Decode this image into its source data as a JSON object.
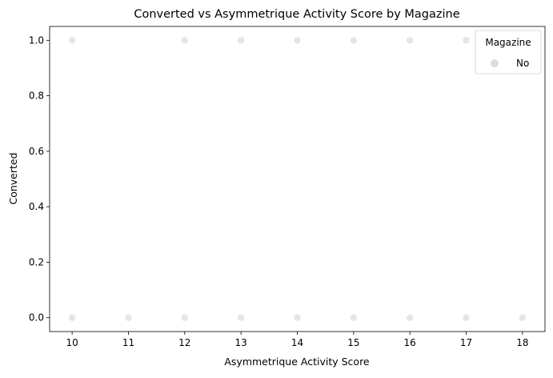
{
  "chart_data": {
    "type": "scatter",
    "title": "Converted vs Asymmetrique Activity Score by Magazine",
    "xlabel": "Asymmetrique Activity Score",
    "ylabel": "Converted",
    "xlim": [
      9.6,
      18.4
    ],
    "ylim": [
      -0.05,
      1.05
    ],
    "x_ticks": [
      10,
      11,
      12,
      13,
      14,
      15,
      16,
      17,
      18
    ],
    "y_ticks": [
      0.0,
      0.2,
      0.4,
      0.6,
      0.8,
      1.0
    ],
    "y_tick_labels": [
      "0.0",
      "0.2",
      "0.4",
      "0.6",
      "0.8",
      "1.0"
    ],
    "grid": false,
    "legend": {
      "title": "Magazine",
      "placement": "top-right"
    },
    "series": [
      {
        "name": "No",
        "color": "#dcdcdc",
        "x": [
          10,
          12,
          13,
          14,
          15,
          16,
          17,
          10,
          11,
          12,
          13,
          14,
          15,
          16,
          17,
          18
        ],
        "y": [
          1,
          1,
          1,
          1,
          1,
          1,
          1,
          0,
          0,
          0,
          0,
          0,
          0,
          0,
          0,
          0
        ]
      }
    ]
  }
}
